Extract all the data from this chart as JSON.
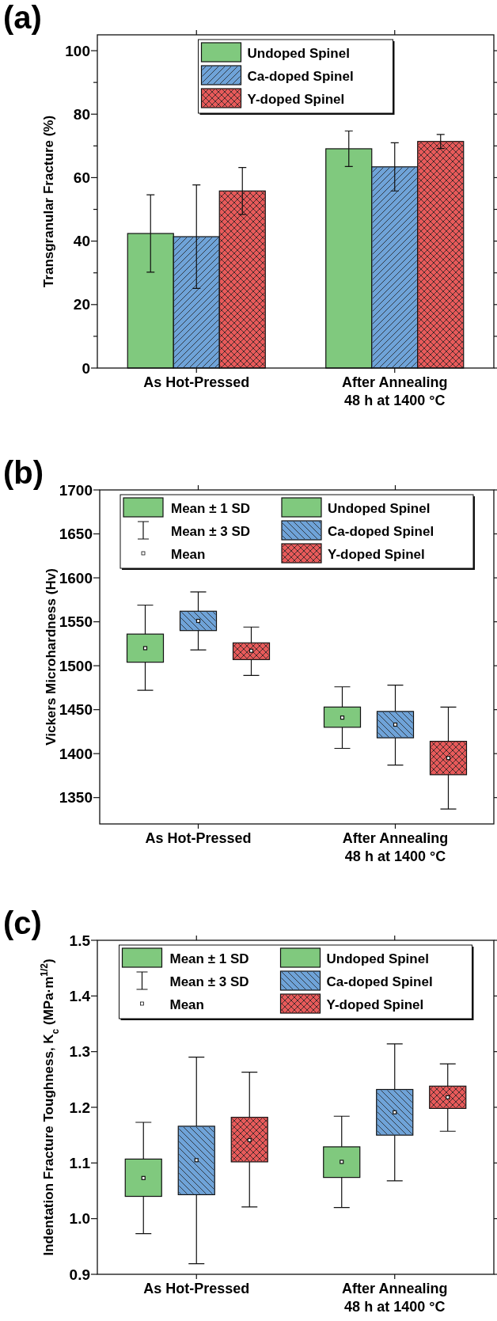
{
  "chart_data": [
    {
      "type": "bar",
      "title": "(a)",
      "ylabel": "Transgranular Fracture (%)",
      "categories": [
        "As Hot-Pressed",
        "After Annealing\n48 h at 1400 °C"
      ],
      "series": [
        {
          "name": "Undoped Spinel",
          "color": "#80c97e",
          "values": [
            42.4,
            69.1
          ],
          "errors": [
            12.2,
            5.6
          ]
        },
        {
          "name": "Ca-doped Spinel",
          "color": "#6fa3d8",
          "values": [
            41.4,
            63.4
          ],
          "errors": [
            16.3,
            7.6
          ]
        },
        {
          "name": "Y-doped Spinel",
          "color": "#e85a5a",
          "values": [
            55.8,
            71.4
          ],
          "errors": [
            7.4,
            2.2
          ]
        }
      ],
      "ylim": [
        0,
        105
      ],
      "yticks": [
        0,
        {
          "value": 10,
          "label": null
        },
        20,
        {
          "value": 30,
          "label": null
        },
        40,
        {
          "value": 50,
          "label": null
        },
        60,
        {
          "value": 70,
          "label": null
        },
        80,
        {
          "value": 90,
          "label": null
        },
        100
      ],
      "legend": "top"
    },
    {
      "type": "box",
      "title": "(b)",
      "ylabel": "Vickers Microhardness (Hv)",
      "categories": [
        "As Hot-Pressed",
        "After Annealing\n48 h at 1400 °C"
      ],
      "series": [
        {
          "name": "Undoped Spinel",
          "color": "#80c97e",
          "boxes": [
            {
              "low": 1472,
              "q1": 1504,
              "q3": 1536,
              "high": 1569,
              "mean": 1520
            },
            {
              "low": 1406,
              "q1": 1430,
              "q3": 1453,
              "high": 1476,
              "mean": 1441
            }
          ]
        },
        {
          "name": "Ca-doped Spinel",
          "color": "#6fa3d8",
          "boxes": [
            {
              "low": 1518,
              "q1": 1540,
              "q3": 1562,
              "high": 1584,
              "mean": 1551
            },
            {
              "low": 1387,
              "q1": 1418,
              "q3": 1448,
              "high": 1478,
              "mean": 1433
            }
          ]
        },
        {
          "name": "Y-doped Spinel",
          "color": "#e85a5a",
          "boxes": [
            {
              "low": 1489,
              "q1": 1507,
              "q3": 1526,
              "high": 1544,
              "mean": 1517
            },
            {
              "low": 1337,
              "q1": 1376,
              "q3": 1414,
              "high": 1453,
              "mean": 1395
            }
          ]
        }
      ],
      "ylim": [
        1320,
        1700
      ],
      "yticks": [
        1350,
        1400,
        1450,
        1500,
        1550,
        1600,
        1650,
        1700
      ],
      "legend": "top",
      "annotations": [
        "Mean ± 1 SD",
        "Mean ± 3 SD",
        "Mean"
      ]
    },
    {
      "type": "box",
      "title": "(c)",
      "ylabel": "Indentation Fracture Toughness, K$_{c}$ (MPa·m$^{1/2}$)",
      "categories": [
        "As Hot-Pressed",
        "After Annealing\n48 h at 1400 °C"
      ],
      "series": [
        {
          "name": "Undoped Spinel",
          "color": "#80c97e",
          "boxes": [
            {
              "low": 0.973,
              "q1": 1.04,
              "q3": 1.107,
              "high": 1.173,
              "mean": 1.073
            },
            {
              "low": 1.02,
              "q1": 1.074,
              "q3": 1.129,
              "high": 1.184,
              "mean": 1.102
            }
          ]
        },
        {
          "name": "Ca-doped Spinel",
          "color": "#6fa3d8",
          "boxes": [
            {
              "low": 0.919,
              "q1": 1.043,
              "q3": 1.166,
              "high": 1.29,
              "mean": 1.105
            },
            {
              "low": 1.068,
              "q1": 1.15,
              "q3": 1.232,
              "high": 1.314,
              "mean": 1.191
            }
          ]
        },
        {
          "name": "Y-doped Spinel",
          "color": "#e85a5a",
          "boxes": [
            {
              "low": 1.021,
              "q1": 1.102,
              "q3": 1.182,
              "high": 1.263,
              "mean": 1.141
            },
            {
              "low": 1.157,
              "q1": 1.198,
              "q3": 1.238,
              "high": 1.278,
              "mean": 1.218
            }
          ]
        }
      ],
      "ylim": [
        0.9,
        1.5
      ],
      "yticks": [
        {
          "value": 0.9,
          "label": "0.9"
        },
        {
          "value": 1,
          "label": "1.0"
        },
        {
          "value": 1.1,
          "label": "1.1"
        },
        {
          "value": 1.2,
          "label": "1.2"
        },
        {
          "value": 1.3,
          "label": "1.3"
        },
        {
          "value": 1.4,
          "label": "1.4"
        },
        {
          "value": 1.5,
          "label": "1.5"
        }
      ],
      "legend": "top",
      "annotations": [
        "Mean ± 1 SD",
        "Mean ± 3 SD",
        "Mean"
      ]
    }
  ]
}
